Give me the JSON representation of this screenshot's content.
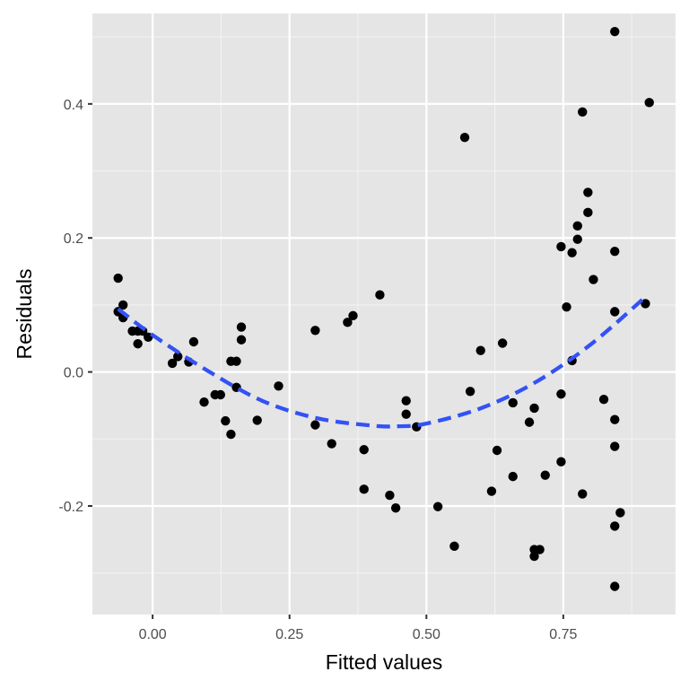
{
  "chart_data": {
    "type": "scatter",
    "title": "",
    "xlabel": "Fitted values",
    "ylabel": "Residuals",
    "xlim": [
      -0.11,
      0.955
    ],
    "ylim": [
      -0.362,
      0.535
    ],
    "x_ticks": [
      {
        "value": 0.0,
        "label": "0.00"
      },
      {
        "value": 0.25,
        "label": "0.25"
      },
      {
        "value": 0.5,
        "label": "0.50"
      },
      {
        "value": 0.75,
        "label": "0.75"
      }
    ],
    "y_ticks": [
      {
        "value": -0.2,
        "label": "-0.2"
      },
      {
        "value": 0.0,
        "label": "0.0"
      },
      {
        "value": 0.2,
        "label": "0.2"
      },
      {
        "value": 0.4,
        "label": "0.4"
      }
    ],
    "grid": true,
    "colors": {
      "panel": "#e5e5e5",
      "grid_major": "#ffffff",
      "grid_minor": "#f2f2f2",
      "points": "#000000",
      "smooth": "#3352f5"
    },
    "series": [
      {
        "kind": "points",
        "points": [
          [
            -0.063,
            0.14
          ],
          [
            -0.063,
            0.09
          ],
          [
            -0.054,
            0.1
          ],
          [
            -0.054,
            0.081
          ],
          [
            -0.037,
            0.061
          ],
          [
            -0.027,
            0.061
          ],
          [
            -0.018,
            0.061
          ],
          [
            -0.027,
            0.042
          ],
          [
            -0.008,
            0.052
          ],
          [
            0.036,
            0.013
          ],
          [
            0.046,
            0.023
          ],
          [
            0.066,
            0.015
          ],
          [
            0.075,
            0.045
          ],
          [
            0.094,
            -0.045
          ],
          [
            0.114,
            -0.034
          ],
          [
            0.124,
            -0.034
          ],
          [
            0.133,
            -0.073
          ],
          [
            0.143,
            -0.093
          ],
          [
            0.143,
            0.016
          ],
          [
            0.153,
            0.016
          ],
          [
            0.153,
            -0.023
          ],
          [
            0.162,
            0.048
          ],
          [
            0.162,
            0.067
          ],
          [
            0.191,
            -0.072
          ],
          [
            0.23,
            -0.021
          ],
          [
            0.297,
            -0.079
          ],
          [
            0.297,
            0.062
          ],
          [
            0.327,
            -0.107
          ],
          [
            0.356,
            0.074
          ],
          [
            0.366,
            0.084
          ],
          [
            0.386,
            -0.116
          ],
          [
            0.386,
            -0.175
          ],
          [
            0.415,
            0.115
          ],
          [
            0.433,
            -0.184
          ],
          [
            0.444,
            -0.203
          ],
          [
            0.463,
            -0.043
          ],
          [
            0.463,
            -0.063
          ],
          [
            0.482,
            -0.082
          ],
          [
            0.521,
            -0.201
          ],
          [
            0.551,
            -0.26
          ],
          [
            0.57,
            0.35
          ],
          [
            0.58,
            -0.029
          ],
          [
            0.599,
            0.032
          ],
          [
            0.619,
            -0.178
          ],
          [
            0.629,
            -0.117
          ],
          [
            0.639,
            0.043
          ],
          [
            0.658,
            -0.046
          ],
          [
            0.658,
            -0.156
          ],
          [
            0.688,
            -0.075
          ],
          [
            0.697,
            -0.054
          ],
          [
            0.697,
            -0.265
          ],
          [
            0.697,
            -0.275
          ],
          [
            0.707,
            -0.265
          ],
          [
            0.717,
            -0.154
          ],
          [
            0.746,
            0.187
          ],
          [
            0.746,
            -0.033
          ],
          [
            0.746,
            -0.134
          ],
          [
            0.756,
            0.097
          ],
          [
            0.766,
            0.017
          ],
          [
            0.766,
            0.178
          ],
          [
            0.776,
            0.198
          ],
          [
            0.776,
            0.218
          ],
          [
            0.785,
            0.388
          ],
          [
            0.785,
            -0.182
          ],
          [
            0.795,
            0.238
          ],
          [
            0.795,
            0.268
          ],
          [
            0.805,
            0.138
          ],
          [
            0.824,
            -0.041
          ],
          [
            0.844,
            0.508
          ],
          [
            0.844,
            0.18
          ],
          [
            0.844,
            0.09
          ],
          [
            0.844,
            -0.071
          ],
          [
            0.844,
            -0.111
          ],
          [
            0.844,
            -0.23
          ],
          [
            0.844,
            -0.32
          ],
          [
            0.854,
            -0.21
          ],
          [
            0.9,
            0.102
          ],
          [
            0.907,
            0.402
          ]
        ]
      },
      {
        "kind": "smooth",
        "style": "dashed",
        "points": [
          [
            -0.063,
            0.094
          ],
          [
            0.0,
            0.055
          ],
          [
            0.1,
            0.002
          ],
          [
            0.2,
            -0.043
          ],
          [
            0.3,
            -0.069
          ],
          [
            0.4,
            -0.08
          ],
          [
            0.45,
            -0.081
          ],
          [
            0.5,
            -0.077
          ],
          [
            0.6,
            -0.054
          ],
          [
            0.7,
            -0.015
          ],
          [
            0.8,
            0.041
          ],
          [
            0.9,
            0.112
          ]
        ]
      }
    ]
  }
}
